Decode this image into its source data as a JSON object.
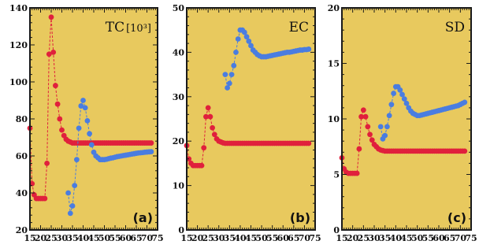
{
  "colors": {
    "background": "#e8c95e",
    "red_series": "#e0203c",
    "blue_series": "#4a7de0",
    "axis": "#1a1a1a"
  },
  "chart_data": [
    {
      "type": "scatter",
      "title": "TC",
      "title_power": "[10³]",
      "tag": "(a)",
      "xlim": [
        15,
        75
      ],
      "ylim": [
        20,
        140
      ],
      "xticks": [
        15,
        20,
        25,
        30,
        35,
        40,
        45,
        50,
        55,
        60,
        65,
        70,
        75
      ],
      "yticks": [
        20,
        40,
        60,
        80,
        100,
        120,
        140
      ],
      "grid": false,
      "series": [
        {
          "color": "red",
          "x": [
            15,
            16,
            17,
            18,
            19,
            20,
            21,
            22,
            23,
            24,
            25,
            26,
            27,
            28,
            29,
            30,
            31,
            32,
            33,
            34,
            35,
            36,
            37,
            38,
            39,
            40,
            41,
            42,
            43,
            44,
            45,
            46,
            47,
            48,
            49,
            50,
            51,
            52,
            53,
            54,
            55,
            56,
            57,
            58,
            59,
            60,
            61,
            62,
            63,
            64,
            65,
            66,
            67,
            68,
            69,
            70,
            71,
            72
          ],
          "y": [
            75,
            45,
            39,
            37,
            37,
            37,
            37,
            37,
            56,
            115,
            135,
            116,
            98,
            88,
            80,
            74,
            71,
            69,
            68,
            67.5,
            67,
            67,
            67,
            67,
            67,
            67,
            67,
            67,
            67,
            67,
            67,
            67,
            67,
            67,
            67,
            67,
            67,
            67,
            67,
            67,
            67,
            67,
            67,
            67,
            67,
            67,
            67,
            67,
            67,
            67,
            67,
            67,
            67,
            67,
            67,
            67,
            67,
            67
          ]
        },
        {
          "color": "blue",
          "x": [
            33,
            34,
            35,
            36,
            37,
            38,
            39,
            40,
            41,
            42,
            43,
            44,
            45,
            46,
            47,
            48,
            49,
            50,
            51,
            52,
            53,
            54,
            55,
            56,
            57,
            58,
            59,
            60,
            61,
            62,
            63,
            64,
            65,
            66,
            67,
            68,
            69,
            70,
            71,
            72
          ],
          "y": [
            40,
            29,
            33,
            44,
            58,
            75,
            87,
            90,
            86,
            79,
            72,
            66,
            62,
            60,
            59,
            58,
            58,
            58,
            58.2,
            58.5,
            58.8,
            59,
            59.3,
            59.6,
            59.8,
            60,
            60.2,
            60.4,
            60.6,
            60.8,
            61,
            61.2,
            61.4,
            61.6,
            61.7,
            61.8,
            62,
            62.1,
            62.2,
            62.3
          ]
        }
      ]
    },
    {
      "type": "scatter",
      "title": "EC",
      "tag": "(b)",
      "xlim": [
        15,
        75
      ],
      "ylim": [
        0,
        50
      ],
      "xticks": [
        15,
        20,
        25,
        30,
        35,
        40,
        45,
        50,
        55,
        60,
        65,
        70,
        75
      ],
      "yticks": [
        0,
        10,
        20,
        30,
        40,
        50
      ],
      "grid": false,
      "series": [
        {
          "color": "red",
          "x": [
            15,
            16,
            17,
            18,
            19,
            20,
            21,
            22,
            23,
            24,
            25,
            26,
            27,
            28,
            29,
            30,
            31,
            32,
            33,
            34,
            35,
            36,
            37,
            38,
            39,
            40,
            41,
            42,
            43,
            44,
            45,
            46,
            47,
            48,
            49,
            50,
            51,
            52,
            53,
            54,
            55,
            56,
            57,
            58,
            59,
            60,
            61,
            62,
            63,
            64,
            65,
            66,
            67,
            68,
            69,
            70,
            71,
            72
          ],
          "y": [
            19,
            16,
            15,
            14.5,
            14.5,
            14.5,
            14.5,
            14.5,
            18.5,
            25.5,
            27.5,
            25.5,
            23,
            21.5,
            20.5,
            20,
            19.8,
            19.6,
            19.5,
            19.5,
            19.5,
            19.5,
            19.5,
            19.5,
            19.5,
            19.5,
            19.5,
            19.5,
            19.5,
            19.5,
            19.5,
            19.5,
            19.5,
            19.5,
            19.5,
            19.5,
            19.5,
            19.5,
            19.5,
            19.5,
            19.5,
            19.5,
            19.5,
            19.5,
            19.5,
            19.5,
            19.5,
            19.5,
            19.5,
            19.5,
            19.5,
            19.5,
            19.5,
            19.5,
            19.5,
            19.5,
            19.5,
            19.5
          ]
        },
        {
          "color": "blue",
          "x": [
            33,
            34,
            35,
            36,
            37,
            38,
            39,
            40,
            41,
            42,
            43,
            44,
            45,
            46,
            47,
            48,
            49,
            50,
            51,
            52,
            53,
            54,
            55,
            56,
            57,
            58,
            59,
            60,
            61,
            62,
            63,
            64,
            65,
            66,
            67,
            68,
            69,
            70,
            71,
            72
          ],
          "y": [
            35,
            32,
            33,
            35,
            37,
            40,
            43,
            45,
            45,
            44.5,
            43.5,
            42.5,
            41.5,
            40.5,
            40,
            39.5,
            39.2,
            39,
            39,
            39,
            39.1,
            39.2,
            39.3,
            39.4,
            39.5,
            39.6,
            39.7,
            39.8,
            39.9,
            40,
            40,
            40.1,
            40.2,
            40.3,
            40.4,
            40.5,
            40.5,
            40.6,
            40.6,
            40.7
          ]
        }
      ]
    },
    {
      "type": "scatter",
      "title": "SD",
      "tag": "(c)",
      "xlim": [
        15,
        75
      ],
      "ylim": [
        0,
        20
      ],
      "xticks": [
        15,
        20,
        25,
        30,
        35,
        40,
        45,
        50,
        55,
        60,
        65,
        70,
        75
      ],
      "yticks": [
        0,
        5,
        10,
        15,
        20
      ],
      "grid": false,
      "series": [
        {
          "color": "red",
          "x": [
            15,
            16,
            17,
            18,
            19,
            20,
            21,
            22,
            23,
            24,
            25,
            26,
            27,
            28,
            29,
            30,
            31,
            32,
            33,
            34,
            35,
            36,
            37,
            38,
            39,
            40,
            41,
            42,
            43,
            44,
            45,
            46,
            47,
            48,
            49,
            50,
            51,
            52,
            53,
            54,
            55,
            56,
            57,
            58,
            59,
            60,
            61,
            62,
            63,
            64,
            65,
            66,
            67,
            68,
            69,
            70,
            71,
            72
          ],
          "y": [
            6.5,
            5.5,
            5.2,
            5.1,
            5.1,
            5.1,
            5.1,
            5.1,
            7.3,
            10.2,
            10.8,
            10.2,
            9.3,
            8.6,
            8.1,
            7.7,
            7.5,
            7.3,
            7.2,
            7.15,
            7.1,
            7.1,
            7.1,
            7.1,
            7.1,
            7.1,
            7.1,
            7.1,
            7.1,
            7.1,
            7.1,
            7.1,
            7.1,
            7.1,
            7.1,
            7.1,
            7.1,
            7.1,
            7.1,
            7.1,
            7.1,
            7.1,
            7.1,
            7.1,
            7.1,
            7.1,
            7.1,
            7.1,
            7.1,
            7.1,
            7.1,
            7.1,
            7.1,
            7.1,
            7.1,
            7.1,
            7.1,
            7.1
          ]
        },
        {
          "color": "blue",
          "x": [
            33,
            34,
            35,
            36,
            37,
            38,
            39,
            40,
            41,
            42,
            43,
            44,
            45,
            46,
            47,
            48,
            49,
            50,
            51,
            52,
            53,
            54,
            55,
            56,
            57,
            58,
            59,
            60,
            61,
            62,
            63,
            64,
            65,
            66,
            67,
            68,
            69,
            70,
            71,
            72
          ],
          "y": [
            9.3,
            8.2,
            8.5,
            9.3,
            10.3,
            11.3,
            12.3,
            12.9,
            12.9,
            12.6,
            12.2,
            11.8,
            11.4,
            11.0,
            10.7,
            10.5,
            10.4,
            10.3,
            10.3,
            10.35,
            10.4,
            10.45,
            10.5,
            10.55,
            10.6,
            10.65,
            10.7,
            10.75,
            10.8,
            10.85,
            10.9,
            10.95,
            11.0,
            11.05,
            11.1,
            11.15,
            11.2,
            11.3,
            11.4,
            11.5
          ]
        }
      ]
    }
  ]
}
